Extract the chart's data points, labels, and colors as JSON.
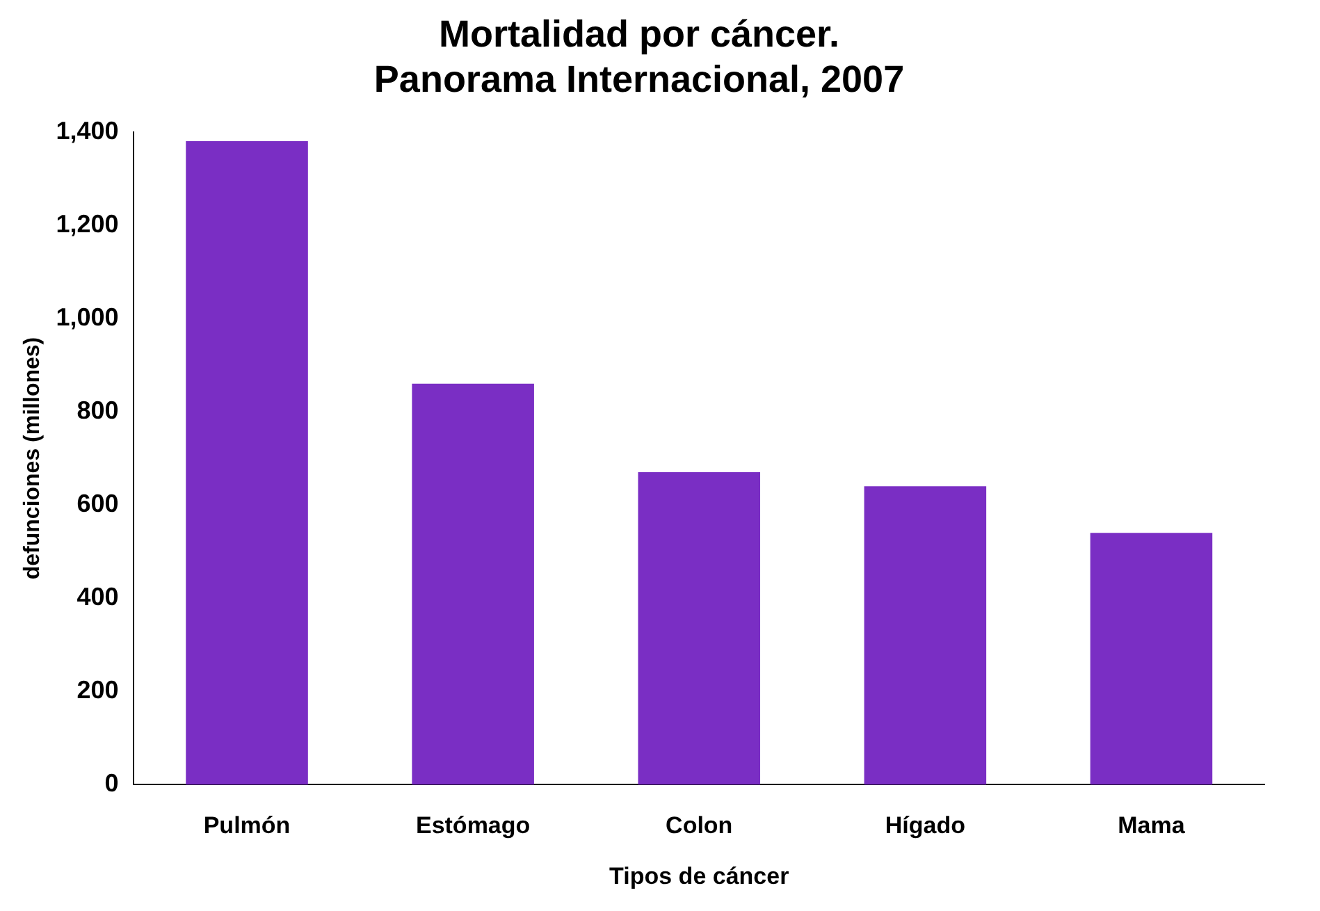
{
  "chart_data": {
    "type": "bar",
    "title": [
      "Mortalidad por cáncer.",
      "Panorama Internacional, 2007"
    ],
    "categories": [
      "Pulmón",
      "Estómago",
      "Colon",
      "Hígado",
      "Mama"
    ],
    "values": [
      1380,
      860,
      670,
      640,
      540
    ],
    "color": "#7a2ec4",
    "xlabel": "Tipos de cáncer",
    "ylabel": "defunciones (millones)",
    "ylim": [
      0,
      1400
    ],
    "yticks": [
      {
        "value": 0,
        "label": "0"
      },
      {
        "value": 200,
        "label": "200"
      },
      {
        "value": 400,
        "label": "400"
      },
      {
        "value": 600,
        "label": "600"
      },
      {
        "value": 800,
        "label": "800"
      },
      {
        "value": 1000,
        "label": "1,000"
      },
      {
        "value": 1200,
        "label": "1,200"
      },
      {
        "value": 1400,
        "label": "1,400"
      }
    ],
    "grid": false,
    "legend": false
  }
}
